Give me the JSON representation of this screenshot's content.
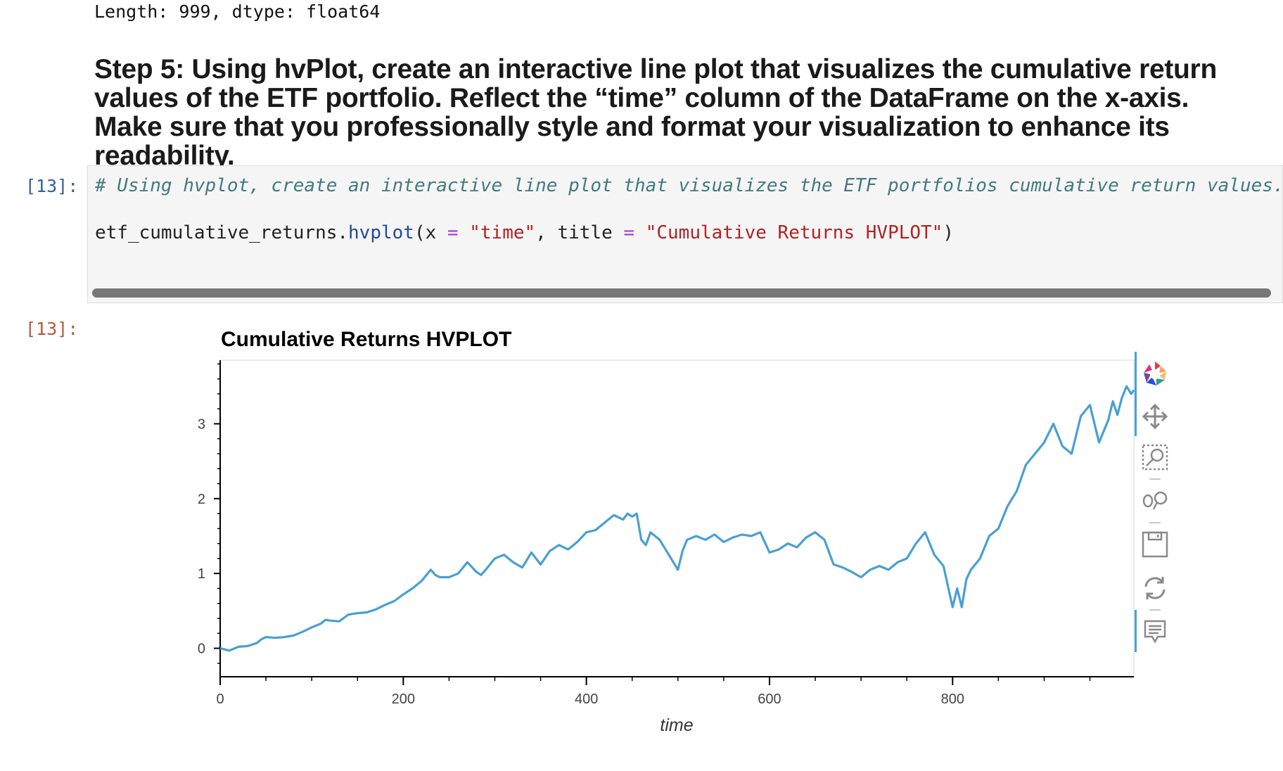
{
  "previous_output": "Length: 999, dtype: float64",
  "step_heading": "Step 5: Using hvPlot, create an interactive line plot that visualizes the cumulative return values of the ETF portfolio. Reflect the “time” column of the DataFrame on the x-axis. Make sure that you professionally style and format your visualization to enhance its readability.",
  "input_prompt": "[13]:",
  "output_prompt": "[13]:",
  "code": {
    "comment": "# Using hvplot, create an interactive line plot that visualizes the ETF portfolios cumulative return values.",
    "var": "etf_cumulative_returns",
    "dot": ".",
    "func": "hvplot",
    "paren_open": "(",
    "arg1": "x ",
    "eq1": "=",
    "str1": " \"time\"",
    "comma": ", title ",
    "eq2": "=",
    "str2": " \"Cumulative Returns HVPLOT\"",
    "paren_close": ")"
  },
  "toolbar": {
    "icons": [
      "bokeh-logo-icon",
      "pan-icon",
      "box-zoom-icon",
      "wheel-zoom-icon",
      "save-icon",
      "reset-icon",
      "hover-icon"
    ]
  },
  "colors": {
    "line": "#4a9fd4",
    "prompt_in": "#30639e",
    "prompt_out": "#b75a3b",
    "comment": "#417a80",
    "string": "#b22222"
  },
  "chart_data": {
    "type": "line",
    "title": "Cumulative Returns HVPLOT",
    "xlabel": "time",
    "ylabel": "",
    "xlim": [
      0,
      998
    ],
    "ylim": [
      -0.38,
      3.85
    ],
    "x_ticks": [
      0,
      200,
      400,
      600,
      800
    ],
    "y_ticks": [
      0,
      1,
      2,
      3
    ],
    "grid": false,
    "series": [
      {
        "x": [
          0,
          10,
          20,
          30,
          40,
          45,
          50,
          60,
          70,
          80,
          90,
          100,
          110,
          115,
          120,
          130,
          140,
          150,
          160,
          170,
          180,
          190,
          200,
          210,
          220,
          230,
          235,
          240,
          250,
          260,
          270,
          280,
          285,
          290,
          300,
          310,
          320,
          330,
          340,
          350,
          360,
          370,
          380,
          390,
          400,
          410,
          420,
          430,
          440,
          445,
          450,
          455,
          460,
          465,
          470,
          480,
          490,
          500,
          505,
          510,
          520,
          530,
          540,
          550,
          560,
          570,
          580,
          590,
          600,
          610,
          620,
          630,
          640,
          650,
          660,
          670,
          680,
          690,
          700,
          710,
          720,
          730,
          740,
          750,
          760,
          770,
          780,
          790,
          800,
          805,
          810,
          815,
          820,
          830,
          840,
          850,
          860,
          870,
          880,
          890,
          900,
          910,
          920,
          930,
          940,
          950,
          960,
          970,
          975,
          980,
          985,
          990,
          995,
          998
        ],
        "values": [
          0.0,
          -0.03,
          0.02,
          0.03,
          0.07,
          0.12,
          0.15,
          0.14,
          0.15,
          0.17,
          0.22,
          0.28,
          0.33,
          0.38,
          0.37,
          0.36,
          0.45,
          0.47,
          0.48,
          0.52,
          0.58,
          0.63,
          0.72,
          0.8,
          0.9,
          1.05,
          0.98,
          0.95,
          0.95,
          1.0,
          1.15,
          1.02,
          0.98,
          1.05,
          1.2,
          1.25,
          1.15,
          1.08,
          1.28,
          1.12,
          1.3,
          1.38,
          1.32,
          1.42,
          1.55,
          1.58,
          1.68,
          1.78,
          1.72,
          1.8,
          1.76,
          1.8,
          1.45,
          1.38,
          1.55,
          1.45,
          1.25,
          1.05,
          1.3,
          1.45,
          1.5,
          1.45,
          1.52,
          1.42,
          1.48,
          1.52,
          1.5,
          1.55,
          1.28,
          1.32,
          1.4,
          1.35,
          1.48,
          1.55,
          1.45,
          1.12,
          1.08,
          1.02,
          0.95,
          1.05,
          1.1,
          1.05,
          1.15,
          1.2,
          1.4,
          1.55,
          1.25,
          1.1,
          0.55,
          0.8,
          0.55,
          0.92,
          1.05,
          1.2,
          1.5,
          1.6,
          1.9,
          2.1,
          2.45,
          2.6,
          2.75,
          3.0,
          2.7,
          2.6,
          3.1,
          3.25,
          2.75,
          3.05,
          3.3,
          3.12,
          3.35,
          3.5,
          3.4,
          3.45
        ]
      }
    ]
  }
}
